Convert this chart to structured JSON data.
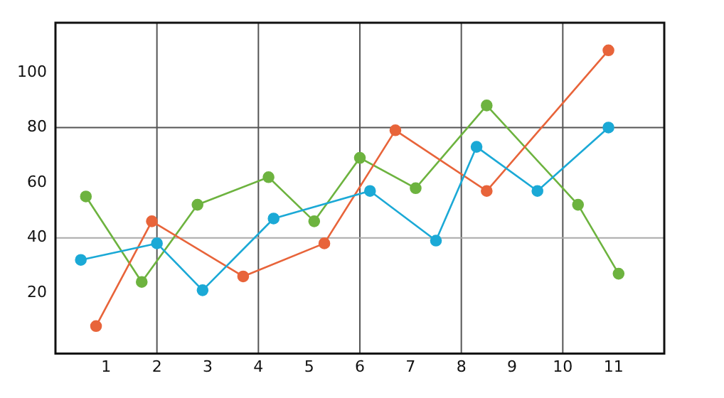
{
  "chart_data": {
    "type": "line",
    "marker": "circle",
    "line_style": "solid",
    "grid": false,
    "legend": false,
    "xlim": [
      0,
      12
    ],
    "xticks": [
      1,
      2,
      3,
      4,
      5,
      6,
      7,
      8,
      9,
      10,
      11
    ],
    "ylim": [
      -2,
      118
    ],
    "yticks": [
      20,
      40,
      60,
      80,
      100
    ],
    "ref_lines": [
      {
        "axis": "x",
        "value": 2,
        "color": "#555555"
      },
      {
        "axis": "x",
        "value": 4,
        "color": "#555555"
      },
      {
        "axis": "x",
        "value": 6,
        "color": "#555555"
      },
      {
        "axis": "x",
        "value": 8,
        "color": "#555555"
      },
      {
        "axis": "x",
        "value": 10,
        "color": "#555555"
      },
      {
        "axis": "y",
        "value": 40,
        "color": "#aaaaaa"
      },
      {
        "axis": "y",
        "value": 80,
        "color": "#555555"
      }
    ],
    "series": [
      {
        "color": "#1ba9d6",
        "x": [
          0.5,
          2.0,
          2.9,
          4.3,
          6.2,
          7.5,
          8.3,
          9.5,
          10.9
        ],
        "values": [
          32,
          38,
          21,
          47,
          57,
          39,
          73,
          57,
          80
        ]
      },
      {
        "color": "#e8643a",
        "x": [
          0.8,
          1.9,
          3.7,
          5.3,
          6.7,
          8.5,
          10.9
        ],
        "values": [
          8,
          46,
          26,
          38,
          79,
          57,
          108
        ]
      },
      {
        "color": "#6db33f",
        "x": [
          0.6,
          1.7,
          2.8,
          4.2,
          5.1,
          6.0,
          7.1,
          8.5,
          10.3,
          11.1
        ],
        "values": [
          55,
          24,
          52,
          62,
          46,
          69,
          58,
          88,
          52,
          27
        ]
      }
    ]
  }
}
